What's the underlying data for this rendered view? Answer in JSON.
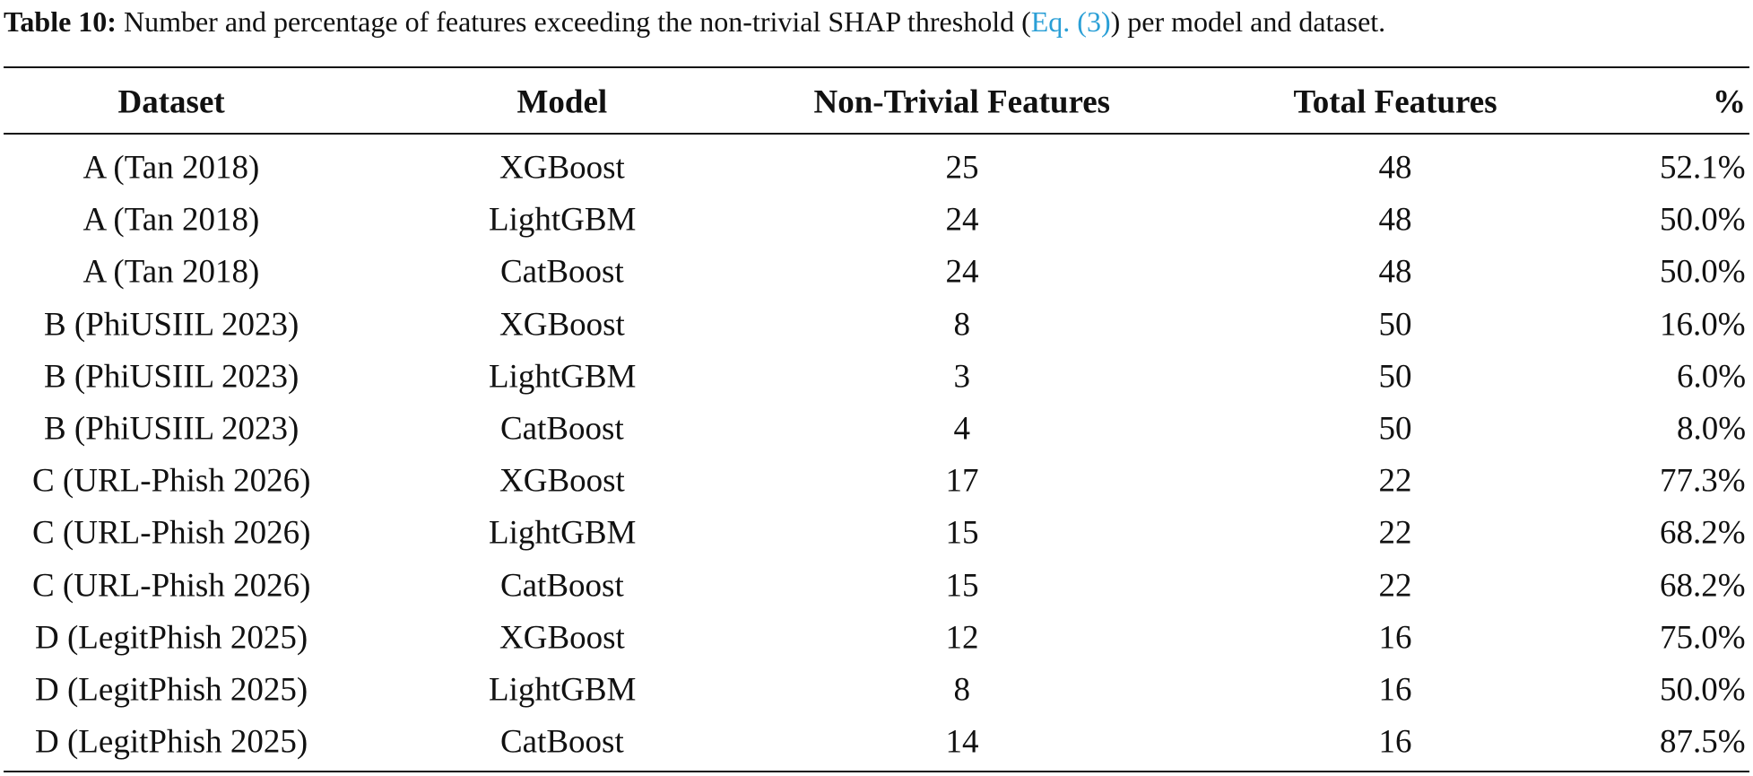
{
  "caption": {
    "label": "Table 10:",
    "text_before": "Number and percentage of features exceeding the non-trivial SHAP threshold (",
    "link": "Eq. (3)",
    "text_after": ") per model and dataset."
  },
  "table": {
    "headers": [
      "Dataset",
      "Model",
      "Non-Trivial Features",
      "Total Features",
      "%"
    ],
    "rows": [
      [
        "A (Tan 2018)",
        "XGBoost",
        "25",
        "48",
        "52.1%"
      ],
      [
        "A (Tan 2018)",
        "LightGBM",
        "24",
        "48",
        "50.0%"
      ],
      [
        "A (Tan 2018)",
        "CatBoost",
        "24",
        "48",
        "50.0%"
      ],
      [
        "B (PhiUSIIL 2023)",
        "XGBoost",
        "8",
        "50",
        "16.0%"
      ],
      [
        "B (PhiUSIIL 2023)",
        "LightGBM",
        "3",
        "50",
        "6.0%"
      ],
      [
        "B (PhiUSIIL 2023)",
        "CatBoost",
        "4",
        "50",
        "8.0%"
      ],
      [
        "C (URL-Phish 2026)",
        "XGBoost",
        "17",
        "22",
        "77.3%"
      ],
      [
        "C (URL-Phish 2026)",
        "LightGBM",
        "15",
        "22",
        "68.2%"
      ],
      [
        "C (URL-Phish 2026)",
        "CatBoost",
        "15",
        "22",
        "68.2%"
      ],
      [
        "D (LegitPhish 2025)",
        "XGBoost",
        "12",
        "16",
        "75.0%"
      ],
      [
        "D (LegitPhish 2025)",
        "LightGBM",
        "8",
        "16",
        "50.0%"
      ],
      [
        "D (LegitPhish 2025)",
        "CatBoost",
        "14",
        "16",
        "87.5%"
      ]
    ]
  }
}
